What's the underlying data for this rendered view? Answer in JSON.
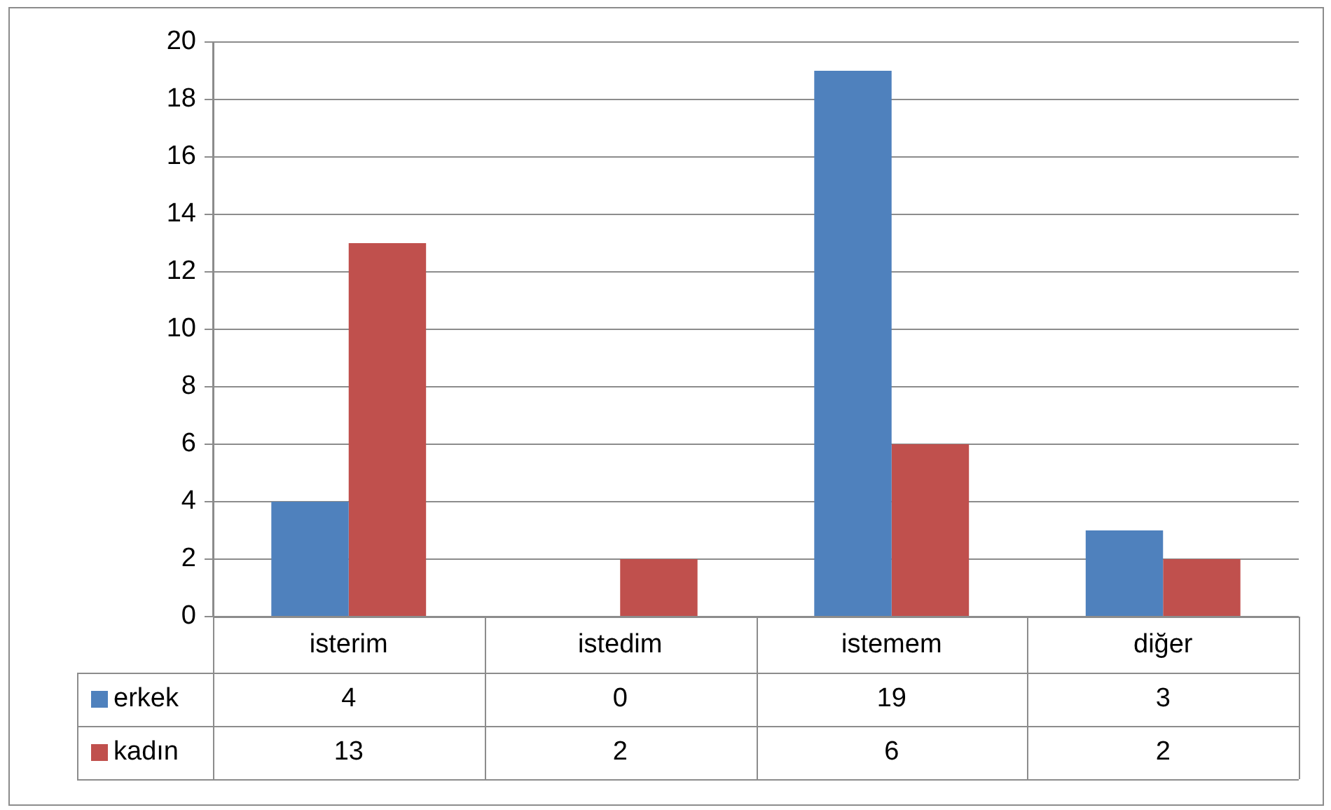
{
  "chart_data": {
    "type": "bar",
    "categories": [
      "isterim",
      "istedim",
      "istemem",
      "diğer"
    ],
    "series": [
      {
        "name": "erkek",
        "color": "#4f81bd",
        "values": [
          4,
          0,
          19,
          3
        ]
      },
      {
        "name": "kadın",
        "color": "#c0504d",
        "values": [
          13,
          2,
          6,
          2
        ]
      }
    ],
    "ylim": [
      0,
      20
    ],
    "yticks": [
      0,
      2,
      4,
      6,
      8,
      10,
      12,
      14,
      16,
      18,
      20
    ],
    "grid": "y",
    "legend": "bottom",
    "data_labels": true
  }
}
